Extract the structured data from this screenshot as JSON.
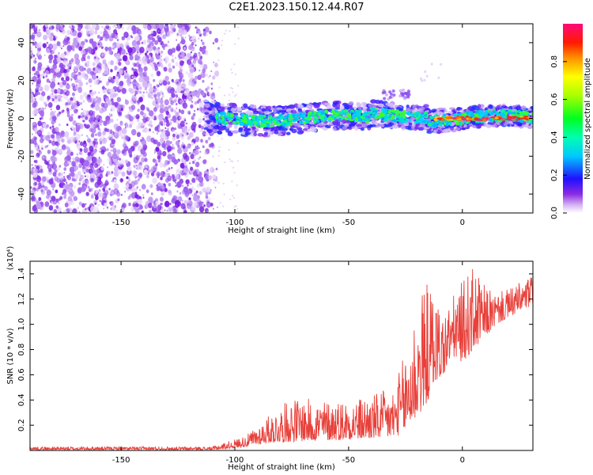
{
  "title": "C2E1.2023.150.12.44.R07",
  "chart_data": [
    {
      "type": "heatmap",
      "name": "spectrogram",
      "title": "C2E1.2023.150.12.44.R07",
      "xlabel": "Height of straight line (km)",
      "ylabel": "Frequency (Hz)",
      "xlim": [
        -190,
        31
      ],
      "ylim": [
        -50,
        50
      ],
      "xticks": [
        -150,
        -100,
        -50,
        0
      ],
      "xtick_labels": [
        "-150",
        "-100",
        "-50",
        "0"
      ],
      "yticks": [
        -40,
        -20,
        0,
        20,
        40
      ],
      "ytick_labels": [
        "-40",
        "-20",
        "0",
        "20",
        "40"
      ],
      "noise_region_x": [
        -190,
        -107
      ],
      "signal_band_x": [
        -113,
        31
      ],
      "signal_band_center_hz": 0,
      "signal_band_halfwidth_hz": 4,
      "colorbar": {
        "label": "Normalized spectral amplitude",
        "range": [
          0,
          1
        ],
        "ticks": [
          0.0,
          0.2,
          0.4,
          0.6,
          0.8
        ],
        "tick_labels": [
          "0.0",
          "0.2",
          "0.4",
          "0.6",
          "0.8"
        ]
      },
      "grid": false
    },
    {
      "type": "line",
      "name": "snr",
      "xlabel": "Height of straight line (km)",
      "ylabel": "SNR (10 * v/v)",
      "y_scale_label": "(x10⁴)",
      "xlim": [
        -190,
        31
      ],
      "ylim": [
        0,
        1.5
      ],
      "xticks": [
        -150,
        -100,
        -50,
        0
      ],
      "xtick_labels": [
        "-150",
        "-100",
        "-50",
        "0"
      ],
      "yticks": [
        0.2,
        0.4,
        0.6,
        0.8,
        1.0,
        1.2,
        1.4
      ],
      "ytick_labels": [
        "0.2",
        "0.4",
        "0.6",
        "0.8",
        "1.0",
        "1.2",
        "1.4"
      ],
      "color": "#e8403a",
      "envelope": {
        "x": [
          -190,
          -110,
          -105,
          -95,
          -85,
          -75,
          -60,
          -45,
          -30,
          -25,
          -20,
          -15,
          -12,
          -8,
          -5,
          0,
          5,
          10,
          15,
          20,
          25,
          31
        ],
        "low": [
          0.005,
          0.005,
          0.01,
          0.03,
          0.06,
          0.07,
          0.08,
          0.09,
          0.1,
          0.15,
          0.25,
          0.4,
          0.55,
          0.6,
          0.75,
          0.7,
          0.8,
          0.9,
          1.0,
          1.05,
          1.1,
          1.15
        ],
        "high": [
          0.03,
          0.03,
          0.06,
          0.12,
          0.28,
          0.42,
          0.4,
          0.42,
          0.5,
          0.8,
          1.2,
          1.35,
          1.25,
          1.1,
          1.2,
          1.35,
          1.46,
          1.3,
          1.25,
          1.28,
          1.33,
          1.4
        ]
      },
      "grid": false
    }
  ]
}
